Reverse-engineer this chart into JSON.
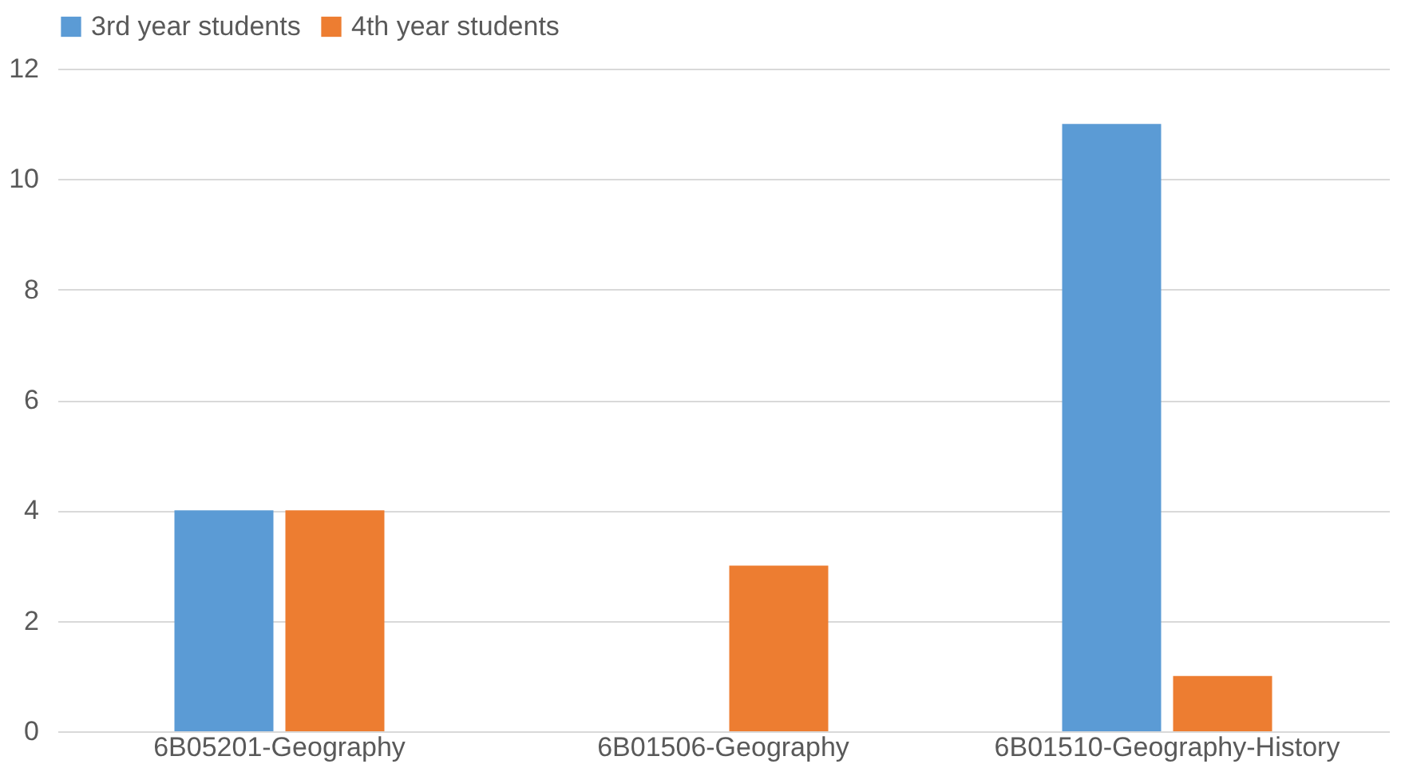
{
  "chart_data": {
    "type": "bar",
    "categories": [
      "6B05201-Geography",
      "6B01506-Geography",
      "6B01510-Geography-History"
    ],
    "series": [
      {
        "name": "3rd year students",
        "color": "#5b9bd5",
        "values": [
          4,
          null,
          11
        ]
      },
      {
        "name": "4th year students",
        "color": "#ed7d31",
        "values": [
          4,
          3,
          1
        ]
      }
    ],
    "ylim": [
      0,
      12
    ],
    "yticks": [
      0,
      2,
      4,
      6,
      8,
      10,
      12
    ],
    "grid": "y",
    "legend": "top"
  }
}
